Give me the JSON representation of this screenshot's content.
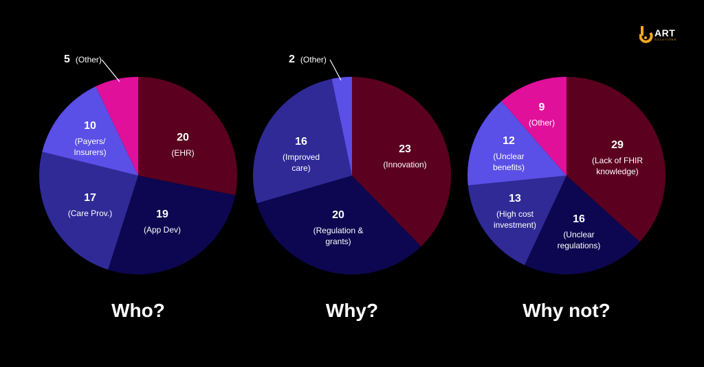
{
  "logo": {
    "word": "ART",
    "sub": "SOLUTIONS",
    "accent": "#f5a623"
  },
  "chart_data": [
    {
      "type": "pie",
      "title": "Who?",
      "slices": [
        {
          "value": 20,
          "label": "EHR",
          "color": "#5c0020"
        },
        {
          "value": 19,
          "label": "App Dev",
          "color": "#0c0750"
        },
        {
          "value": 17,
          "label": "Care Prov.",
          "color": "#2f2a96"
        },
        {
          "value": 10,
          "label": "Payers/ Insurers",
          "color": "#5a4fe6"
        },
        {
          "value": 5,
          "label": "Other",
          "color": "#e0109a"
        }
      ]
    },
    {
      "type": "pie",
      "title": "Why?",
      "slices": [
        {
          "value": 23,
          "label": "Innovation",
          "color": "#5c0020"
        },
        {
          "value": 20,
          "label": "Regulation & grants",
          "color": "#0c0750"
        },
        {
          "value": 16,
          "label": "Improved care",
          "color": "#2f2a96"
        },
        {
          "value": 2,
          "label": "Other",
          "color": "#5a4fe6"
        }
      ]
    },
    {
      "type": "pie",
      "title": "Why not?",
      "slices": [
        {
          "value": 29,
          "label": "Lack of FHIR knowledge",
          "color": "#5c0020"
        },
        {
          "value": 16,
          "label": "Unclear regulations",
          "color": "#0c0750"
        },
        {
          "value": 13,
          "label": "High cost investment",
          "color": "#2f2a96"
        },
        {
          "value": 12,
          "label": "Unclear benefits",
          "color": "#5a4fe6"
        },
        {
          "value": 9,
          "label": "Other",
          "color": "#e0109a"
        }
      ]
    }
  ]
}
